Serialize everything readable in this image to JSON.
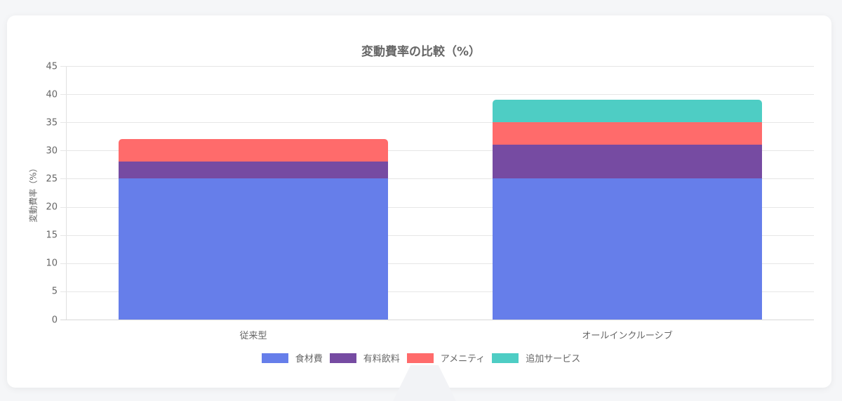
{
  "chart_data": {
    "type": "bar",
    "stacked": true,
    "title": "変動費率の比較（%）",
    "xlabel": "",
    "ylabel": "変動費率（%）",
    "ylim": [
      0,
      45
    ],
    "yticks": [
      "45",
      "40",
      "35",
      "30",
      "25",
      "20",
      "15",
      "10",
      "5",
      "0"
    ],
    "grid": true,
    "legend_position": "bottom",
    "categories": [
      "従来型",
      "オールインクルーシブ"
    ],
    "series": [
      {
        "name": "食材費",
        "color": "#667eea",
        "values": [
          25,
          25
        ]
      },
      {
        "name": "有料飲料",
        "color": "#764ba2",
        "values": [
          3,
          6
        ]
      },
      {
        "name": "アメニティ",
        "color": "#ff6b6b",
        "values": [
          4,
          4
        ]
      },
      {
        "name": "追加サービス",
        "color": "#4ecdc4",
        "values": [
          0,
          4
        ]
      }
    ]
  }
}
